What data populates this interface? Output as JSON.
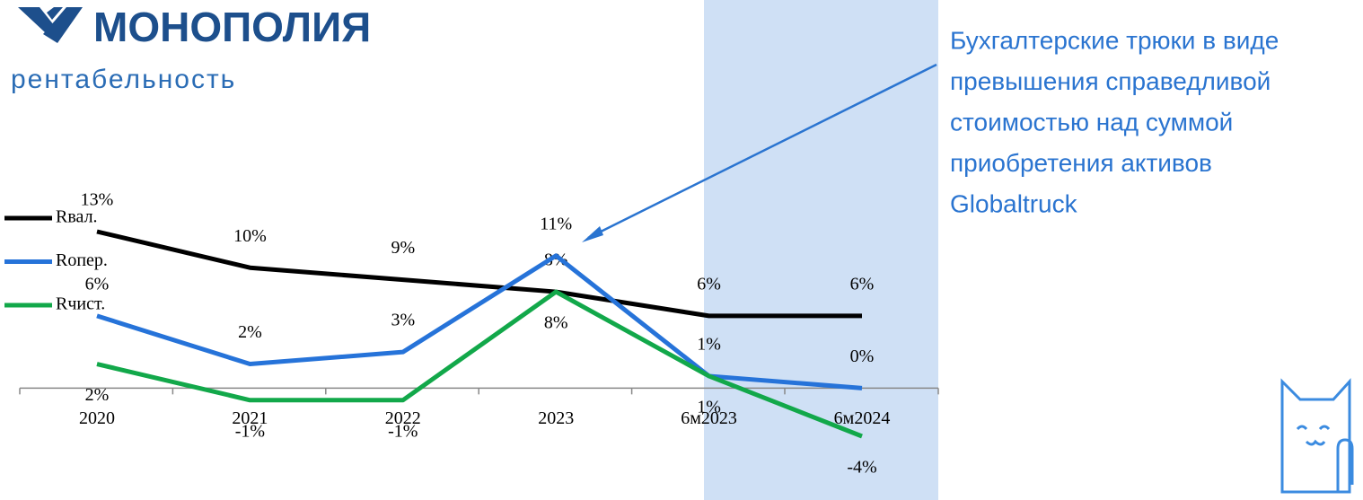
{
  "logo_text": "МОНОПОЛИЯ",
  "chart_data": {
    "type": "line",
    "title": "рентабельность",
    "categories": [
      "2020",
      "2021",
      "2022",
      "2023",
      "6м2023",
      "6м2024"
    ],
    "series": [
      {
        "name": "Rвал.",
        "color": "#000000",
        "values": [
          13,
          10,
          9,
          8,
          6,
          6
        ],
        "value_labels": [
          "13%",
          "10%",
          "9%",
          "8%",
          "6%",
          "6%"
        ]
      },
      {
        "name": "Rопер.",
        "color": "#2673d9",
        "values": [
          6,
          2,
          3,
          11,
          1,
          0
        ],
        "value_labels": [
          "6%",
          "2%",
          "3%",
          "11%",
          "1%",
          "0%"
        ]
      },
      {
        "name": "Rчист.",
        "color": "#12a84a",
        "values": [
          2,
          -1,
          -1,
          8,
          1,
          -4
        ],
        "value_labels": [
          "2%",
          "-1%",
          "-1%",
          "8%",
          "1%",
          "-4%"
        ]
      }
    ],
    "legend": "left",
    "annotation": [
      "Бухгалтерские трюки в виде",
      "превышения справедливой",
      "стоимостью над суммой",
      "приобретения активов",
      "Globaltruck"
    ]
  }
}
